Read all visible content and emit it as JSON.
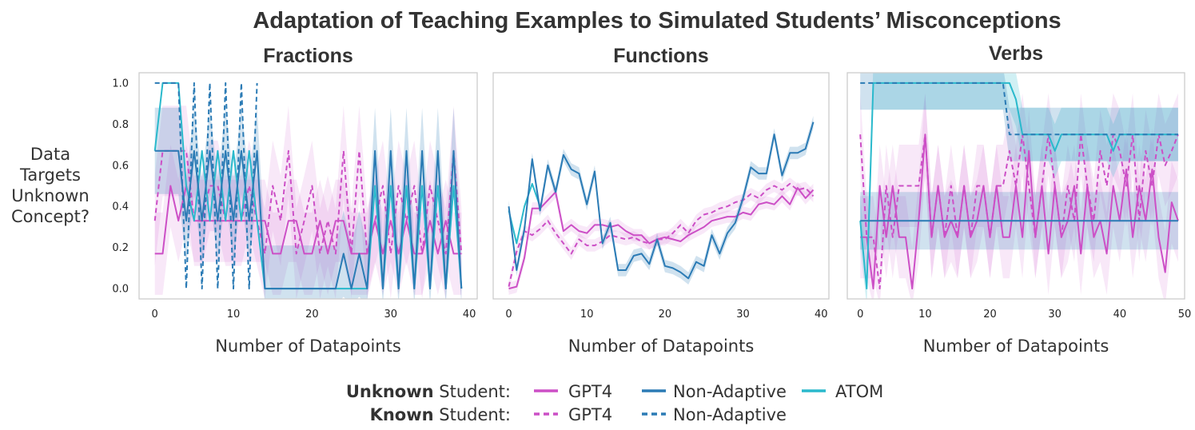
{
  "title": "Adaptation of Teaching Examples to Simulated Students’ Misconceptions",
  "ylabel_lines": [
    "Data",
    "Targets",
    "Unknown",
    "Concept?"
  ],
  "colors": {
    "gpt4": "#cc4fc6",
    "nonadaptive": "#2b7bb5",
    "atom": "#2ab9cc"
  },
  "legend": {
    "unknown_bold": "Unknown",
    "known_bold": "Known",
    "student_suffix": " Student:",
    "entries": [
      {
        "label": "GPT4",
        "series": "gpt4_unknown"
      },
      {
        "label": "Non-Adaptive",
        "series": "nonadaptive_unknown"
      },
      {
        "label": "ATOM",
        "series": "atom_unknown"
      },
      {
        "label": "GPT4",
        "series": "gpt4_known"
      },
      {
        "label": "Non-Adaptive",
        "series": "nonadaptive_known"
      }
    ]
  },
  "chart_data": [
    {
      "type": "line",
      "title": "Fractions",
      "xlabel": "Number of Datapoints",
      "xlim": [
        -2,
        41
      ],
      "ylim": [
        -0.05,
        1.05
      ],
      "xticks": [
        0,
        10,
        20,
        30,
        40
      ],
      "yticks": [
        0.0,
        0.2,
        0.4,
        0.6,
        0.8,
        1.0
      ],
      "grid": false,
      "series": [
        {
          "key": "gpt4_known",
          "color": "gpt4",
          "dash": true,
          "band": 0.22,
          "y": [
            0.33,
            0.67,
            0.67,
            0.67,
            0.67,
            0.33,
            0.33,
            0.5,
            0.5,
            0.33,
            0.33,
            0.33,
            0.5,
            0.33,
            0.17,
            0.5,
            0.33,
            0.67,
            0.17,
            0.33,
            0.5,
            0.17,
            0.33,
            0.17,
            0.67,
            0.17,
            0.67,
            0.17,
            0.33,
            0.5,
            0.17,
            0.5,
            0.33,
            0.5,
            0.17,
            0.5,
            0.33,
            0.17,
            0.67,
            0.17
          ]
        },
        {
          "key": "gpt4_unknown",
          "color": "gpt4",
          "dash": false,
          "band": 0.2,
          "y": [
            0.17,
            0.17,
            0.5,
            0.33,
            0.5,
            0.33,
            0.33,
            0.33,
            0.33,
            0.33,
            0.33,
            0.33,
            0.33,
            0.33,
            0.33,
            0.17,
            0.17,
            0.33,
            0.33,
            0.17,
            0.17,
            0.33,
            0.17,
            0.33,
            0.33,
            0.17,
            0.17,
            0.17,
            0.33,
            0.17,
            0.33,
            0.17,
            0.33,
            0.17,
            0.17,
            0.33,
            0.17,
            0.33,
            0.17,
            0.17
          ]
        },
        {
          "key": "atom_unknown",
          "color": "atom",
          "dash": false,
          "band": 0.0,
          "y": [
            0.67,
            1.0,
            1.0,
            1.0,
            0.5,
            0.33,
            0.67,
            0.33,
            0.67,
            0.33,
            0.67,
            0.33,
            0.67,
            0.33,
            0.0,
            0.0,
            0.0,
            0.0,
            0.0,
            0.0,
            0.0,
            0.0,
            0.0,
            0.0,
            0.0,
            0.0,
            0.0,
            0.0,
            0.5,
            0.0,
            0.5,
            0.0,
            0.5,
            0.0,
            0.5,
            0.0,
            0.5,
            0.0,
            0.5,
            0.0
          ]
        },
        {
          "key": "nonadaptive_unknown",
          "color": "nonadaptive",
          "dash": false,
          "band": 0.21,
          "y": [
            0.67,
            0.67,
            0.67,
            0.67,
            0.33,
            0.67,
            0.33,
            0.67,
            0.33,
            0.67,
            0.33,
            0.67,
            0.33,
            0.67,
            0.0,
            0.0,
            0.0,
            0.0,
            0.0,
            0.0,
            0.0,
            0.0,
            0.0,
            0.0,
            0.17,
            0.0,
            0.17,
            0.0,
            0.67,
            0.0,
            0.67,
            0.0,
            0.67,
            0.0,
            0.67,
            0.0,
            0.67,
            0.0,
            0.67,
            0.0
          ]
        },
        {
          "key": "nonadaptive_known",
          "color": "nonadaptive",
          "dash": true,
          "band": 0.0,
          "y": [
            1.0,
            1.0,
            1.0,
            1.0,
            0.0,
            1.0,
            0.0,
            1.0,
            0.0,
            1.0,
            0.0,
            1.0,
            0.0,
            1.0
          ]
        }
      ]
    },
    {
      "type": "line",
      "title": "Functions",
      "xlabel": "Number of Datapoints",
      "xlim": [
        -2,
        41
      ],
      "ylim": [
        -0.05,
        1.05
      ],
      "xticks": [
        0,
        10,
        20,
        30,
        40
      ],
      "yticks": [
        0.0,
        0.2,
        0.4,
        0.6,
        0.8,
        1.0
      ],
      "grid": false,
      "series": [
        {
          "key": "gpt4_known",
          "color": "gpt4",
          "dash": true,
          "band": 0.03,
          "y": [
            0.01,
            0.18,
            0.28,
            0.26,
            0.29,
            0.33,
            0.27,
            0.22,
            0.17,
            0.24,
            0.21,
            0.21,
            0.23,
            0.26,
            0.25,
            0.24,
            0.25,
            0.23,
            0.22,
            0.24,
            0.24,
            0.27,
            0.31,
            0.27,
            0.33,
            0.36,
            0.37,
            0.39,
            0.4,
            0.42,
            0.43,
            0.46,
            0.44,
            0.48,
            0.5,
            0.48,
            0.51,
            0.48,
            0.49,
            0.45
          ]
        },
        {
          "key": "gpt4_unknown",
          "color": "gpt4",
          "dash": false,
          "band": 0.03,
          "y": [
            0.0,
            0.01,
            0.15,
            0.39,
            0.39,
            0.43,
            0.47,
            0.28,
            0.31,
            0.28,
            0.27,
            0.31,
            0.31,
            0.3,
            0.31,
            0.28,
            0.26,
            0.26,
            0.22,
            0.24,
            0.25,
            0.24,
            0.23,
            0.26,
            0.28,
            0.3,
            0.33,
            0.34,
            0.35,
            0.35,
            0.37,
            0.36,
            0.41,
            0.42,
            0.41,
            0.45,
            0.41,
            0.49,
            0.44,
            0.48
          ]
        },
        {
          "key": "atom_unknown",
          "color": "atom",
          "dash": false,
          "band": 0.0,
          "y": [
            0.38,
            0.22,
            0.4,
            0.51,
            0.4
          ]
        },
        {
          "key": "nonadaptive_unknown",
          "color": "nonadaptive",
          "dash": false,
          "band": 0.03,
          "y": [
            0.4,
            0.09,
            0.29,
            0.63,
            0.38,
            0.6,
            0.47,
            0.65,
            0.58,
            0.56,
            0.41,
            0.57,
            0.22,
            0.32,
            0.09,
            0.09,
            0.16,
            0.17,
            0.12,
            0.24,
            0.11,
            0.1,
            0.08,
            0.05,
            0.13,
            0.11,
            0.26,
            0.17,
            0.27,
            0.32,
            0.44,
            0.59,
            0.56,
            0.56,
            0.75,
            0.55,
            0.66,
            0.66,
            0.68,
            0.81
          ]
        }
      ]
    },
    {
      "type": "line",
      "title": "Verbs",
      "xlabel": "Number of Datapoints",
      "xlim": [
        -2,
        50
      ],
      "ylim": [
        -0.05,
        1.05
      ],
      "xticks": [
        0,
        10,
        20,
        30,
        40,
        50
      ],
      "yticks": [
        0.0,
        0.2,
        0.4,
        0.6,
        0.8,
        1.0
      ],
      "grid": false,
      "series": [
        {
          "key": "gpt4_known",
          "color": "gpt4",
          "dash": true,
          "band": 0.2,
          "y": [
            0.75,
            0.25,
            0.25,
            0.0,
            0.5,
            0.25,
            0.5,
            0.5,
            0.5,
            0.5,
            0.75,
            0.25,
            0.5,
            0.25,
            0.5,
            0.25,
            0.5,
            0.25,
            0.5,
            0.5,
            0.25,
            0.5,
            0.5,
            0.67,
            0.5,
            0.75,
            0.5,
            0.25,
            0.5,
            0.75,
            0.5,
            0.25,
            0.5,
            0.33,
            0.75,
            0.5,
            0.33,
            0.67,
            0.5,
            0.75,
            0.67,
            0.5,
            0.75,
            0.33,
            0.67,
            0.5,
            0.75,
            0.6,
            0.67,
            0.75
          ]
        },
        {
          "key": "gpt4_unknown",
          "color": "gpt4",
          "dash": false,
          "band": 0.2,
          "y": [
            0.25,
            0.25,
            0.0,
            0.5,
            0.25,
            0.5,
            0.25,
            0.25,
            0.0,
            0.33,
            0.75,
            0.25,
            0.5,
            0.25,
            0.33,
            0.25,
            0.5,
            0.25,
            0.33,
            0.5,
            0.25,
            0.5,
            0.25,
            0.25,
            0.5,
            0.25,
            0.67,
            0.25,
            0.5,
            0.17,
            0.5,
            0.25,
            0.33,
            0.5,
            0.17,
            0.5,
            0.25,
            0.33,
            0.17,
            0.5,
            0.33,
            0.58,
            0.25,
            0.5,
            0.33,
            0.58,
            0.25,
            0.08,
            0.42,
            0.33
          ]
        },
        {
          "key": "atom_unknown",
          "color": "atom",
          "dash": false,
          "band": 0.13,
          "y": [
            0.33,
            0.0,
            1.0,
            1.0,
            1.0,
            1.0,
            1.0,
            1.0,
            1.0,
            1.0,
            1.0,
            1.0,
            1.0,
            1.0,
            1.0,
            1.0,
            1.0,
            1.0,
            1.0,
            1.0,
            1.0,
            1.0,
            1.0,
            1.0,
            0.92,
            0.75,
            0.75,
            0.75,
            0.75,
            0.75,
            0.67,
            0.75,
            0.75,
            0.75,
            0.75,
            0.75,
            0.75,
            0.75,
            0.75,
            0.67,
            0.75,
            0.75,
            0.75,
            0.75,
            0.75,
            0.75,
            0.75,
            0.75,
            0.75,
            0.75
          ]
        },
        {
          "key": "nonadaptive_unknown",
          "color": "nonadaptive",
          "dash": false,
          "band": 0.14,
          "y": [
            0.33,
            0.33,
            0.33,
            0.33,
            0.33,
            0.33,
            0.33,
            0.33,
            0.33,
            0.33,
            0.33,
            0.33,
            0.33,
            0.33,
            0.33,
            0.33,
            0.33,
            0.33,
            0.33,
            0.33,
            0.33,
            0.33,
            0.33,
            0.33,
            0.33,
            0.33,
            0.33,
            0.33,
            0.33,
            0.33,
            0.33,
            0.33,
            0.33,
            0.33,
            0.33,
            0.33,
            0.33,
            0.33,
            0.33,
            0.33,
            0.33,
            0.33,
            0.33,
            0.33,
            0.33,
            0.33,
            0.33,
            0.33,
            0.33,
            0.33
          ]
        },
        {
          "key": "nonadaptive_known",
          "color": "nonadaptive",
          "dash": true,
          "band": 0.13,
          "y": [
            1.0,
            1.0,
            1.0,
            1.0,
            1.0,
            1.0,
            1.0,
            1.0,
            1.0,
            1.0,
            1.0,
            1.0,
            1.0,
            1.0,
            1.0,
            1.0,
            1.0,
            1.0,
            1.0,
            1.0,
            1.0,
            1.0,
            1.0,
            0.75,
            0.75,
            0.75,
            0.75,
            0.75,
            0.75,
            0.75,
            0.75,
            0.75,
            0.75,
            0.75,
            0.75,
            0.75,
            0.75,
            0.75,
            0.75,
            0.75,
            0.75,
            0.75,
            0.75,
            0.75,
            0.75,
            0.75,
            0.75,
            0.75,
            0.75,
            0.75
          ]
        }
      ]
    }
  ]
}
